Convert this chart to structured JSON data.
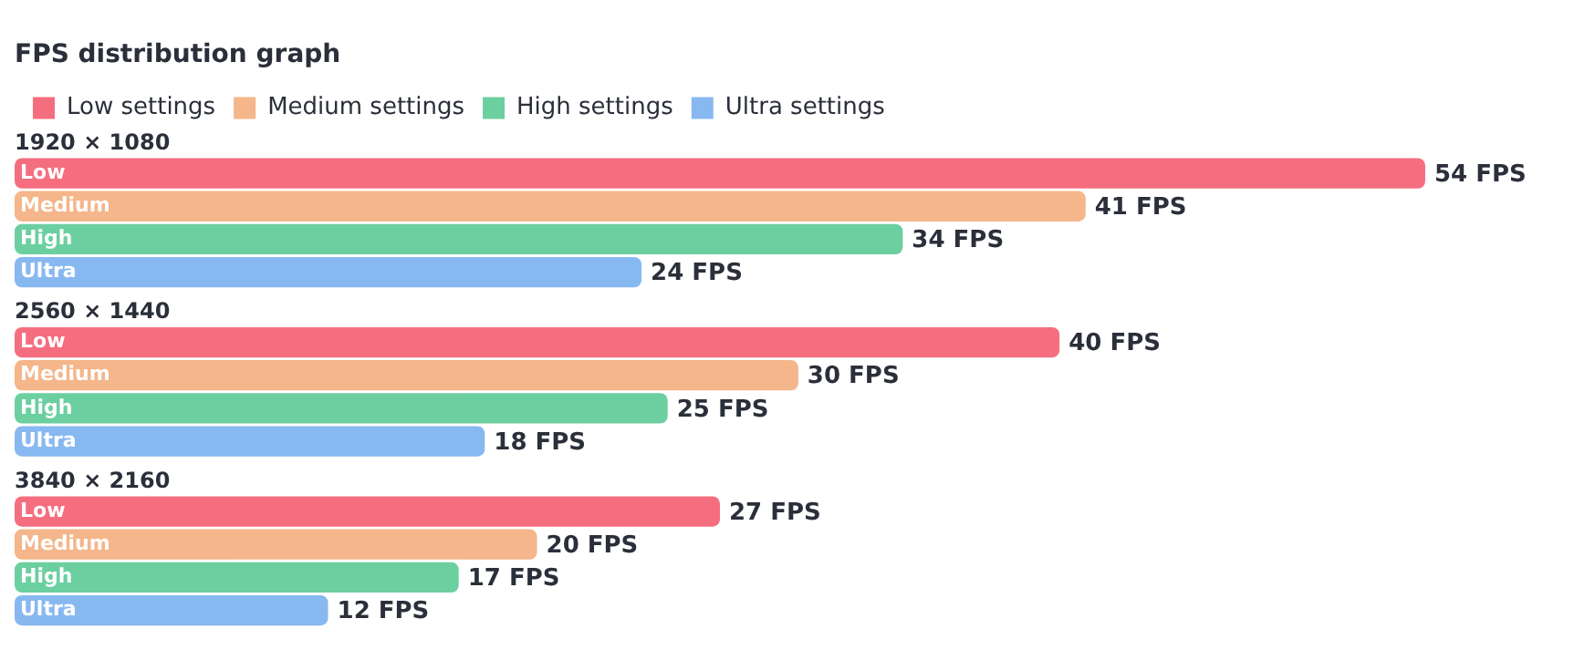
{
  "chart_data": {
    "type": "bar",
    "title": "FPS distribution graph",
    "orientation": "horizontal",
    "legend": "top left",
    "annotations": [
      "Low",
      "Medium",
      "High",
      "Ultra"
    ],
    "categories": [
      "1920 × 1080",
      "2560 × 1440",
      "3840 × 2160"
    ],
    "series": [
      {
        "name": "Low settings",
        "color": "#f56e7f",
        "values": [
          54,
          40,
          27
        ],
        "value_labels": [
          "54 FPS",
          "40 FPS",
          "27 FPS"
        ]
      },
      {
        "name": "Medium settings",
        "color": "#f4b68a",
        "values": [
          41,
          30,
          20
        ],
        "value_labels": [
          "41 FPS",
          "30 FPS",
          "20 FPS"
        ]
      },
      {
        "name": "High settings",
        "color": "#6ccfa0",
        "values": [
          34,
          25,
          17
        ],
        "value_labels": [
          "34 FPS",
          "25 FPS",
          "17 FPS"
        ]
      },
      {
        "name": "Ultra settings",
        "color": "#88b8f0",
        "values": [
          24,
          18,
          12
        ],
        "value_labels": [
          "24 FPS",
          "18 FPS",
          "12 FPS"
        ]
      }
    ]
  }
}
